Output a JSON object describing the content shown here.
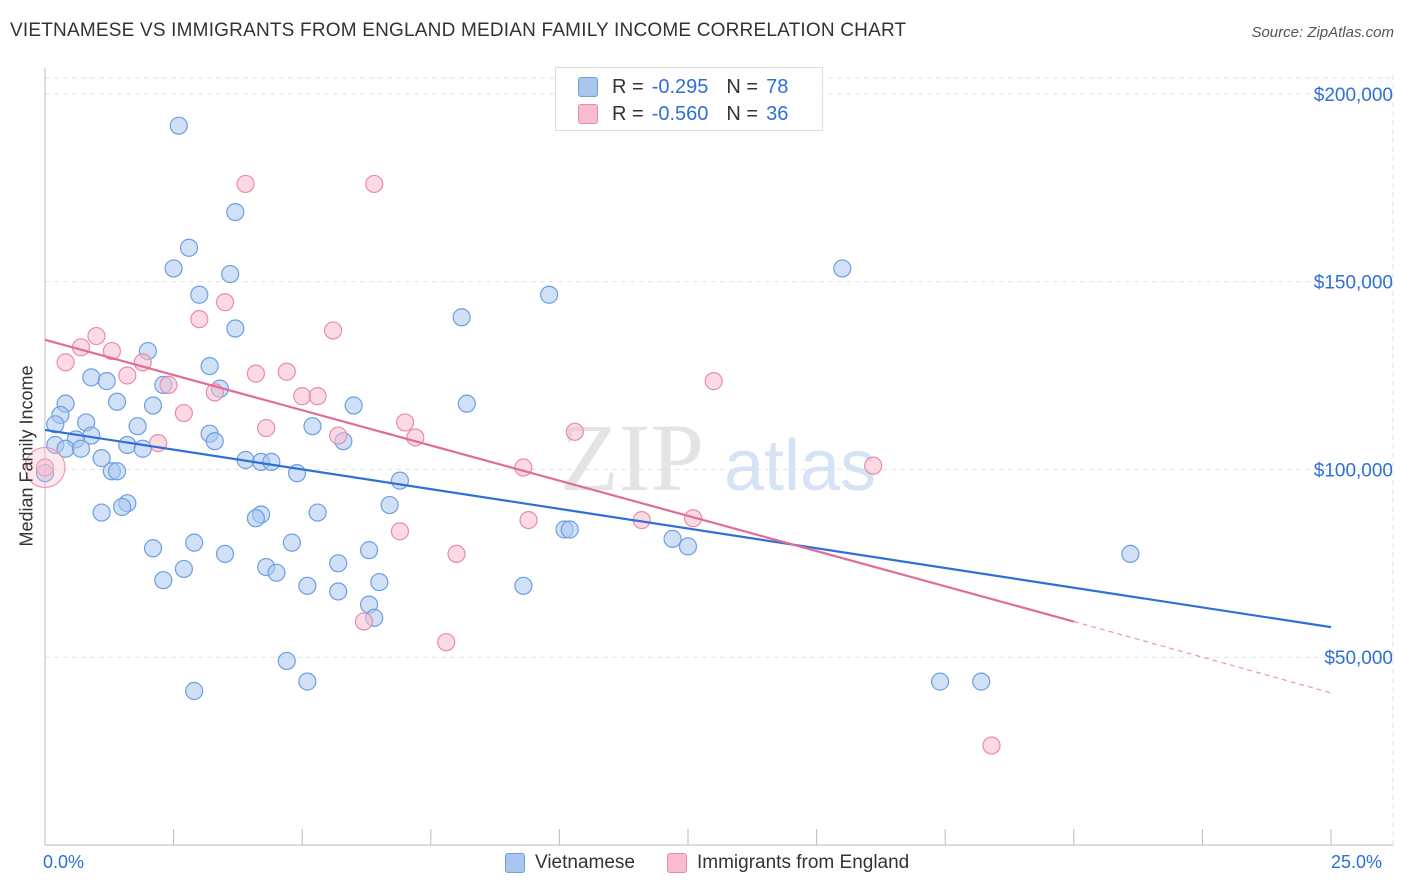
{
  "title": "VIETNAMESE VS IMMIGRANTS FROM ENGLAND MEDIAN FAMILY INCOME CORRELATION CHART",
  "source": "Source: ZipAtlas.com",
  "watermark": {
    "zip": "ZIP",
    "atlas": "atlas"
  },
  "legend": {
    "rows": [
      {
        "r_label": "R =",
        "r_value": "-0.295",
        "n_label": "N =",
        "n_value": "78",
        "color": "#a9c6ee",
        "stroke": "#6d9fe0"
      },
      {
        "r_label": "R =",
        "r_value": "-0.560",
        "n_label": "N =",
        "n_value": "36",
        "color": "#f7bcd0",
        "stroke": "#ea8bab"
      }
    ]
  },
  "chart_data": {
    "type": "scatter",
    "xlabel": "",
    "ylabel": "Median Family Income",
    "x_tick_labels": [
      "0.0%",
      "25.0%"
    ],
    "y_tick_labels": [
      "$50,000",
      "$100,000",
      "$150,000",
      "$200,000"
    ],
    "xlim": [
      0,
      25
    ],
    "ylim": [
      0,
      205000
    ],
    "y_ticks": [
      50000,
      100000,
      150000,
      200000
    ],
    "grid": true,
    "legend_position": "top-center",
    "series": [
      {
        "name": "Vietnamese",
        "color": "#a9c6ee",
        "stroke": "#6d9fe0",
        "trend_color": "#2f6fd6",
        "trend": {
          "x0": 0,
          "y0": 110500,
          "x1": 25,
          "y1": 58000
        },
        "points": [
          [
            2.6,
            191500
          ],
          [
            3.7,
            168500
          ],
          [
            2.8,
            159000
          ],
          [
            2.5,
            153500
          ],
          [
            3.6,
            152000
          ],
          [
            15.5,
            153500
          ],
          [
            3.0,
            146500
          ],
          [
            9.8,
            146500
          ],
          [
            3.7,
            137500
          ],
          [
            8.1,
            140500
          ],
          [
            2.0,
            131500
          ],
          [
            3.2,
            127500
          ],
          [
            0.9,
            124500
          ],
          [
            1.2,
            123500
          ],
          [
            2.3,
            122500
          ],
          [
            3.4,
            121500
          ],
          [
            0.4,
            117500
          ],
          [
            1.4,
            118000
          ],
          [
            2.1,
            117000
          ],
          [
            6.0,
            117000
          ],
          [
            8.2,
            117500
          ],
          [
            0.3,
            114500
          ],
          [
            0.8,
            112500
          ],
          [
            0.2,
            112000
          ],
          [
            1.8,
            111500
          ],
          [
            5.2,
            111500
          ],
          [
            0.9,
            109000
          ],
          [
            3.2,
            109500
          ],
          [
            0.6,
            108000
          ],
          [
            3.3,
            107500
          ],
          [
            5.8,
            107500
          ],
          [
            0.2,
            106500
          ],
          [
            1.6,
            106500
          ],
          [
            0.4,
            105500
          ],
          [
            0.7,
            105500
          ],
          [
            1.9,
            105500
          ],
          [
            1.1,
            103000
          ],
          [
            3.9,
            102500
          ],
          [
            4.2,
            102000
          ],
          [
            4.4,
            102000
          ],
          [
            1.3,
            99500
          ],
          [
            1.4,
            99500
          ],
          [
            4.9,
            99000
          ],
          [
            0.0,
            99000
          ],
          [
            6.9,
            97000
          ],
          [
            1.6,
            91000
          ],
          [
            1.5,
            90000
          ],
          [
            6.7,
            90500
          ],
          [
            1.1,
            88500
          ],
          [
            4.2,
            88000
          ],
          [
            4.1,
            87000
          ],
          [
            5.3,
            88500
          ],
          [
            10.1,
            84000
          ],
          [
            10.2,
            84000
          ],
          [
            12.2,
            81500
          ],
          [
            12.5,
            79500
          ],
          [
            2.9,
            80500
          ],
          [
            4.8,
            80500
          ],
          [
            2.1,
            79000
          ],
          [
            3.5,
            77500
          ],
          [
            6.3,
            78500
          ],
          [
            21.1,
            77500
          ],
          [
            5.7,
            75000
          ],
          [
            4.3,
            74000
          ],
          [
            2.7,
            73500
          ],
          [
            4.5,
            72500
          ],
          [
            2.3,
            70500
          ],
          [
            6.5,
            70000
          ],
          [
            5.1,
            69000
          ],
          [
            5.7,
            67500
          ],
          [
            9.3,
            69000
          ],
          [
            6.3,
            64000
          ],
          [
            6.4,
            60500
          ],
          [
            4.7,
            49000
          ],
          [
            5.1,
            43500
          ],
          [
            2.9,
            41000
          ],
          [
            17.4,
            43500
          ],
          [
            18.2,
            43500
          ]
        ]
      },
      {
        "name": "Immigrants from England",
        "color": "#f7bcd0",
        "stroke": "#ea8bab",
        "trend_color": "#e06c98",
        "trend": {
          "x0": 0,
          "y0": 134500,
          "x1": 20.0,
          "y1": 59500
        },
        "trend_dashed": {
          "x0": 20.0,
          "y0": 59500,
          "x1": 25,
          "y1": 40500
        },
        "points": [
          [
            3.9,
            176000
          ],
          [
            6.4,
            176000
          ],
          [
            3.5,
            144500
          ],
          [
            3.0,
            140000
          ],
          [
            5.6,
            137000
          ],
          [
            1.0,
            135500
          ],
          [
            0.7,
            132500
          ],
          [
            1.3,
            131500
          ],
          [
            0.4,
            128500
          ],
          [
            1.9,
            128500
          ],
          [
            4.7,
            126000
          ],
          [
            1.6,
            125000
          ],
          [
            4.1,
            125500
          ],
          [
            2.4,
            122500
          ],
          [
            13.0,
            123500
          ],
          [
            3.3,
            120500
          ],
          [
            5.0,
            119500
          ],
          [
            5.3,
            119500
          ],
          [
            2.7,
            115000
          ],
          [
            7.0,
            112500
          ],
          [
            4.3,
            111000
          ],
          [
            10.3,
            110000
          ],
          [
            5.7,
            109000
          ],
          [
            7.2,
            108500
          ],
          [
            2.2,
            107000
          ],
          [
            16.1,
            101000
          ],
          [
            9.3,
            100500
          ],
          [
            0.0,
            100500
          ],
          [
            9.4,
            86500
          ],
          [
            11.6,
            86500
          ],
          [
            12.6,
            87000
          ],
          [
            6.9,
            83500
          ],
          [
            8.0,
            77500
          ],
          [
            6.2,
            59500
          ],
          [
            7.8,
            54000
          ],
          [
            18.4,
            26500
          ]
        ]
      }
    ]
  }
}
